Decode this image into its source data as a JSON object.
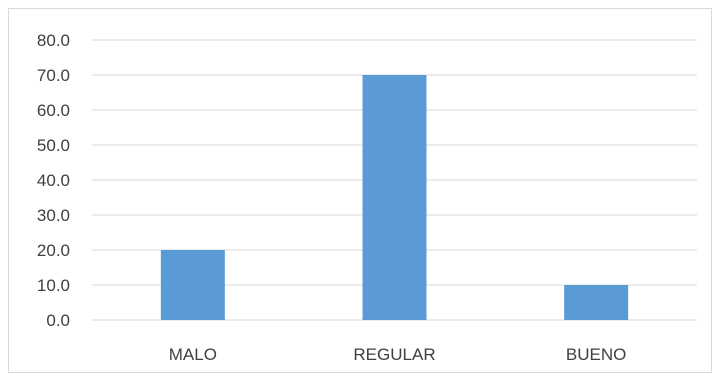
{
  "chart_data": {
    "type": "bar",
    "categories": [
      "MALO",
      "REGULAR",
      "BUENO"
    ],
    "values": [
      20.0,
      70.0,
      10.0
    ],
    "title": "",
    "xlabel": "",
    "ylabel": "",
    "ylim": [
      0,
      80
    ],
    "yticks": [
      "0.0",
      "10.0",
      "20.0",
      "30.0",
      "40.0",
      "50.0",
      "60.0",
      "70.0",
      "80.0"
    ],
    "grid": true,
    "legend": "none",
    "bar_color": "#5b9bd5",
    "grid_color": "#d9d9d9"
  }
}
